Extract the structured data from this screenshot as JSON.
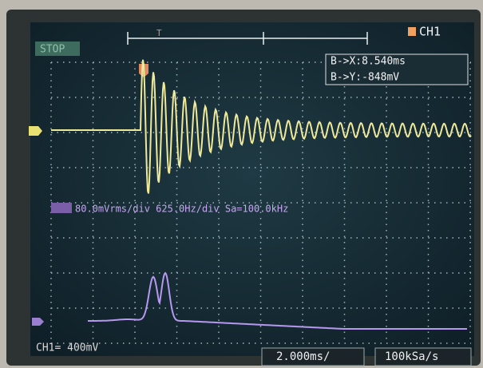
{
  "status": "STOP",
  "channel": "CH1",
  "cursor": {
    "x": "B->X:8.540ms",
    "y": "B->Y:-848mV"
  },
  "fft_info": "80.0mVrms/div 625.0Hz/div Sa=100.0kHz",
  "bottom": {
    "channel_scale": "CH1= 400mV",
    "timebase": "2.000ms/",
    "sample_rate": "100kSa/s"
  }
}
